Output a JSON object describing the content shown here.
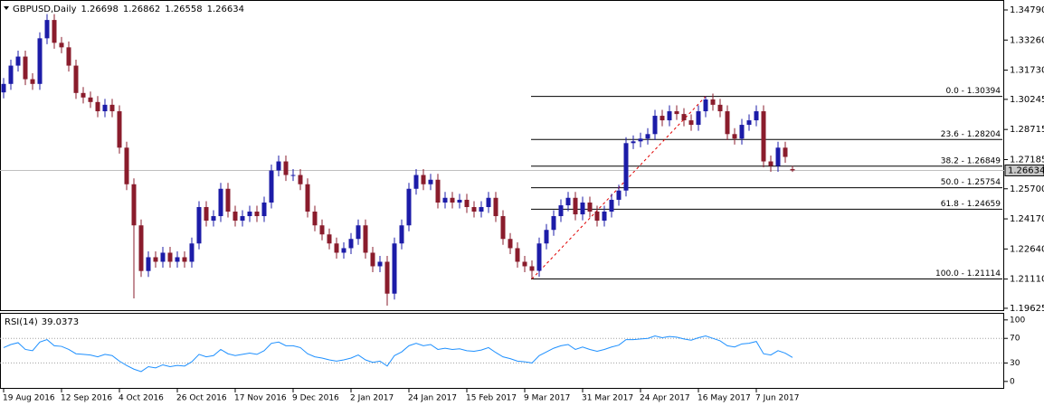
{
  "chart_data": {
    "type": "candlestick",
    "title": "GBPUSD,Daily",
    "categories": [
      "19 Aug 2016",
      null,
      null,
      null,
      null,
      null,
      null,
      null,
      "12 Sep 2016",
      null,
      null,
      null,
      null,
      null,
      null,
      null,
      "4 Oct 2016",
      null,
      null,
      null,
      null,
      null,
      null,
      null,
      "26 Oct 2016",
      null,
      null,
      null,
      null,
      null,
      null,
      null,
      "17 Nov 2016",
      null,
      null,
      null,
      null,
      null,
      null,
      null,
      "9 Dec 2016",
      null,
      null,
      null,
      null,
      null,
      null,
      null,
      "2 Jan 2017",
      null,
      null,
      null,
      null,
      null,
      null,
      null,
      "24 Jan 2017",
      null,
      null,
      null,
      null,
      null,
      null,
      null,
      "15 Feb 2017",
      null,
      null,
      null,
      null,
      null,
      null,
      null,
      "9 Mar 2017",
      null,
      null,
      null,
      null,
      null,
      null,
      null,
      "31 Mar 2017",
      null,
      null,
      null,
      null,
      null,
      null,
      null,
      "24 Apr 2017",
      null,
      null,
      null,
      null,
      null,
      null,
      null,
      "16 May 2017",
      null,
      null,
      null,
      null,
      null,
      null,
      null,
      "7 Jun 2017",
      null,
      null,
      null,
      null,
      null
    ],
    "open": [
      1.306,
      1.3103,
      1.3196,
      1.3242,
      1.3127,
      1.3103,
      1.3335,
      1.3428,
      1.3312,
      1.3289,
      1.3196,
      1.3057,
      1.3034,
      1.3011,
      1.2964,
      1.2997,
      1.2964,
      1.2779,
      1.2593,
      1.2384,
      1.2152,
      1.2222,
      1.2199,
      1.2245,
      1.2199,
      1.2222,
      1.2199,
      1.2292,
      1.2477,
      1.2408,
      1.2431,
      1.257,
      1.2454,
      1.2408,
      1.2431,
      1.2454,
      1.2431,
      1.25,
      1.2663,
      1.2709,
      1.264,
      1.264,
      1.2593,
      1.2454,
      1.2384,
      1.2338,
      1.2292,
      1.2245,
      1.2268,
      1.2315,
      1.2384,
      1.2245,
      1.2176,
      1.2199,
      1.2037,
      1.2292,
      1.2384,
      1.257,
      1.264,
      1.2593,
      1.2616,
      1.25,
      1.2524,
      1.25,
      1.2514,
      1.2477,
      1.2454,
      1.2477,
      1.2524,
      1.2431,
      1.2315,
      1.2268,
      1.2199,
      1.2176,
      1.2153,
      1.2292,
      1.2361,
      1.2431,
      1.2486,
      1.2524,
      1.244,
      1.25,
      1.2454,
      1.2408,
      1.2454,
      1.2514,
      1.2561,
      1.2802,
      1.2811,
      1.2825,
      1.2848,
      1.2941,
      1.2918,
      1.2964,
      1.295,
      1.2918,
      1.2895,
      1.2964,
      1.3024,
      1.2997,
      1.2964,
      1.2848,
      1.2825,
      1.2895,
      1.2918,
      1.2964,
      1.2709,
      1.2686,
      1.2779,
      1.26698
    ],
    "high": [
      1.3133,
      1.3226,
      1.3272,
      1.3272,
      1.3157,
      1.3365,
      1.3458,
      1.3458,
      1.3342,
      1.3319,
      1.3226,
      1.3087,
      1.3064,
      1.3041,
      1.3027,
      1.3027,
      1.2994,
      1.2809,
      1.2623,
      1.2414,
      1.2252,
      1.2252,
      1.2275,
      1.2275,
      1.2252,
      1.2252,
      1.2322,
      1.2507,
      1.2507,
      1.2461,
      1.26,
      1.26,
      1.2484,
      1.2461,
      1.2484,
      1.2484,
      1.253,
      1.2693,
      1.2739,
      1.2739,
      1.267,
      1.267,
      1.2623,
      1.2484,
      1.2414,
      1.2368,
      1.2322,
      1.2298,
      1.2345,
      1.2414,
      1.2414,
      1.2275,
      1.2229,
      1.2229,
      1.2322,
      1.2414,
      1.26,
      1.267,
      1.267,
      1.2646,
      1.2646,
      1.2554,
      1.2554,
      1.2544,
      1.2544,
      1.2507,
      1.2507,
      1.2554,
      1.2554,
      1.2461,
      1.2345,
      1.2298,
      1.2229,
      1.2206,
      1.2322,
      1.2391,
      1.2461,
      1.2516,
      1.2554,
      1.2554,
      1.253,
      1.253,
      1.2484,
      1.2484,
      1.2544,
      1.2591,
      1.2832,
      1.2841,
      1.2855,
      1.2878,
      1.2971,
      1.2971,
      1.2994,
      1.2994,
      1.298,
      1.2948,
      1.2994,
      1.3039,
      1.3054,
      1.3027,
      1.2994,
      1.2878,
      1.2925,
      1.2948,
      1.2994,
      1.2994,
      1.2739,
      1.2809,
      1.2809,
      1.26862
    ],
    "low": [
      1.303,
      1.3073,
      1.3166,
      1.3097,
      1.3073,
      1.3073,
      1.3305,
      1.3282,
      1.3259,
      1.3166,
      1.3027,
      1.3004,
      1.2981,
      1.2934,
      1.2934,
      1.2934,
      1.2749,
      1.2563,
      1.2013,
      1.2122,
      1.2122,
      1.2169,
      1.2169,
      1.2169,
      1.2169,
      1.2169,
      1.2169,
      1.2262,
      1.2378,
      1.2378,
      1.2401,
      1.2424,
      1.2378,
      1.2378,
      1.2401,
      1.2401,
      1.2401,
      1.247,
      1.2633,
      1.261,
      1.261,
      1.2563,
      1.2424,
      1.2354,
      1.2308,
      1.2262,
      1.2215,
      1.2215,
      1.2238,
      1.2285,
      1.2215,
      1.2146,
      1.2146,
      1.1976,
      1.2007,
      1.2262,
      1.2354,
      1.254,
      1.2563,
      1.2563,
      1.247,
      1.247,
      1.247,
      1.247,
      1.2447,
      1.2424,
      1.2424,
      1.2447,
      1.2401,
      1.2285,
      1.2238,
      1.2169,
      1.2146,
      1.2111,
      1.2123,
      1.2262,
      1.2331,
      1.2401,
      1.2456,
      1.241,
      1.241,
      1.2424,
      1.2378,
      1.2378,
      1.2424,
      1.2484,
      1.2531,
      1.2772,
      1.2781,
      1.2795,
      1.2818,
      1.2888,
      1.2888,
      1.292,
      1.2888,
      1.2865,
      1.2865,
      1.2934,
      1.2967,
      1.2934,
      1.2818,
      1.2795,
      1.2795,
      1.2865,
      1.2888,
      1.2679,
      1.2656,
      1.2656,
      1.2702,
      1.26558
    ],
    "close": [
      1.3103,
      1.3196,
      1.3242,
      1.3127,
      1.3103,
      1.3335,
      1.3428,
      1.3312,
      1.3289,
      1.3196,
      1.3057,
      1.3034,
      1.3011,
      1.2964,
      1.2997,
      1.2964,
      1.2779,
      1.2593,
      1.2384,
      1.2152,
      1.2222,
      1.2199,
      1.2245,
      1.2199,
      1.2222,
      1.2199,
      1.2292,
      1.2477,
      1.2408,
      1.2431,
      1.257,
      1.2454,
      1.2408,
      1.2431,
      1.2454,
      1.2431,
      1.25,
      1.2663,
      1.2709,
      1.264,
      1.264,
      1.2593,
      1.2454,
      1.2384,
      1.2338,
      1.2292,
      1.2245,
      1.2268,
      1.2315,
      1.2384,
      1.2245,
      1.2176,
      1.2199,
      1.2037,
      1.2292,
      1.2384,
      1.257,
      1.264,
      1.2593,
      1.2616,
      1.25,
      1.2524,
      1.25,
      1.2514,
      1.2477,
      1.2454,
      1.2477,
      1.2524,
      1.2431,
      1.2315,
      1.2268,
      1.2199,
      1.2176,
      1.2153,
      1.2292,
      1.2361,
      1.2431,
      1.2486,
      1.2524,
      1.244,
      1.25,
      1.2454,
      1.2408,
      1.2454,
      1.2514,
      1.2561,
      1.2802,
      1.2811,
      1.2825,
      1.2848,
      1.2941,
      1.2918,
      1.2964,
      1.295,
      1.2918,
      1.2895,
      1.2964,
      1.3024,
      1.2997,
      1.2964,
      1.2848,
      1.2825,
      1.2895,
      1.2918,
      1.2964,
      1.2709,
      1.2686,
      1.2779,
      1.2732,
      1.26634
    ],
    "up_color": "#1c1ca8",
    "down_color": "#8a1c2c",
    "ylim": [
      1.1953,
      1.3525
    ],
    "yticks": [
      {
        "value": 1.3479,
        "label": "1.34790"
      },
      {
        "value": 1.3326,
        "label": "1.33260"
      },
      {
        "value": 1.3173,
        "label": "1.31730"
      },
      {
        "value": 1.30245,
        "label": "1.30245"
      },
      {
        "value": 1.28715,
        "label": "1.28715"
      },
      {
        "value": 1.27185,
        "label": "1.27185"
      },
      {
        "value": 1.257,
        "label": "1.25700"
      },
      {
        "value": 1.2417,
        "label": "1.24170"
      },
      {
        "value": 1.2264,
        "label": "1.22640"
      },
      {
        "value": 1.2111,
        "label": "1.21110"
      },
      {
        "value": 1.19625,
        "label": "1.19625"
      }
    ],
    "fib_levels": [
      {
        "label": "0.0 - 1.30394",
        "value": 1.30394
      },
      {
        "label": "23.6 - 1.28204",
        "value": 1.28204
      },
      {
        "label": "38.2 - 1.26849",
        "value": 1.26849
      },
      {
        "label": "50.0 - 1.25754",
        "value": 1.25754
      },
      {
        "label": "61.8 - 1.24659",
        "value": 1.24659
      },
      {
        "label": "100.0 - 1.21114",
        "value": 1.21114
      }
    ],
    "indicator": {
      "title": "RSI(14)",
      "color": "#1e90ff",
      "ylim": [
        -12,
        110
      ],
      "yticks": [
        100,
        70,
        30,
        0
      ],
      "levels": [
        70,
        30
      ],
      "values": [
        55,
        60,
        63,
        52,
        50,
        64,
        68,
        58,
        57,
        52,
        45,
        44,
        43,
        40,
        44,
        42,
        33,
        26,
        20,
        16,
        24,
        22,
        27,
        24,
        26,
        25,
        32,
        44,
        40,
        42,
        52,
        45,
        42,
        44,
        46,
        44,
        50,
        62,
        64,
        58,
        58,
        55,
        45,
        40,
        38,
        35,
        33,
        35,
        38,
        43,
        35,
        31,
        33,
        25,
        42,
        48,
        58,
        62,
        58,
        60,
        52,
        54,
        52,
        53,
        50,
        49,
        51,
        55,
        47,
        40,
        37,
        33,
        32,
        30,
        42,
        48,
        54,
        58,
        60,
        52,
        56,
        52,
        49,
        52,
        56,
        59,
        68,
        68,
        69,
        70,
        74,
        71,
        73,
        72,
        69,
        67,
        71,
        74,
        70,
        66,
        58,
        56,
        61,
        62,
        65,
        45,
        43,
        50,
        46,
        39.0373
      ]
    }
  }
}
